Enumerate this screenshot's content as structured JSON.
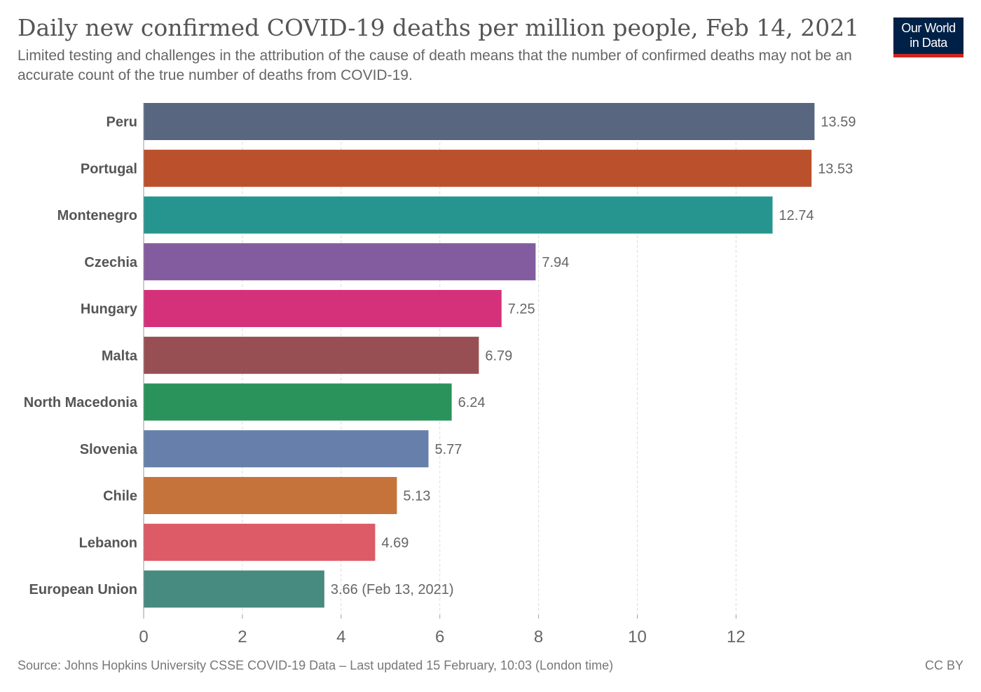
{
  "header": {
    "title": "Daily new confirmed COVID-19 deaths per million people, Feb 14, 2021",
    "subtitle": "Limited testing and challenges in the attribution of the cause of death means that the number of confirmed deaths may not be an accurate count of the true number of deaths from COVID-19.",
    "logo_line1": "Our World",
    "logo_line2": "in Data"
  },
  "footer": {
    "source": "Source: Johns Hopkins University CSSE COVID-19 Data – Last updated 15 February, 10:03 (London time)",
    "license": "CC BY"
  },
  "colors": {
    "logo_bg": "#002147",
    "logo_underline": "#ce261e"
  },
  "chart_data": {
    "type": "bar",
    "orientation": "horizontal",
    "categories": [
      "Peru",
      "Portugal",
      "Montenegro",
      "Czechia",
      "Hungary",
      "Malta",
      "North Macedonia",
      "Slovenia",
      "Chile",
      "Lebanon",
      "European Union"
    ],
    "values": [
      13.59,
      13.53,
      12.74,
      7.94,
      7.25,
      6.79,
      6.24,
      5.77,
      5.13,
      4.69,
      3.66
    ],
    "value_labels": [
      "13.59",
      "13.53",
      "12.74",
      "7.94",
      "7.25",
      "6.79",
      "6.24",
      "5.77",
      "5.13",
      "4.69",
      "3.66 (Feb 13, 2021)"
    ],
    "colors": [
      "#58677f",
      "#bb512c",
      "#27958f",
      "#835c9f",
      "#d5317a",
      "#984f54",
      "#2a935b",
      "#6680ab",
      "#c6733b",
      "#dd5a67",
      "#478a7f"
    ],
    "xticks": [
      0,
      2,
      4,
      6,
      8,
      10,
      12
    ],
    "xlim": [
      0,
      13.59
    ],
    "grid": "vertical dashed",
    "xlabel": "",
    "ylabel": ""
  }
}
